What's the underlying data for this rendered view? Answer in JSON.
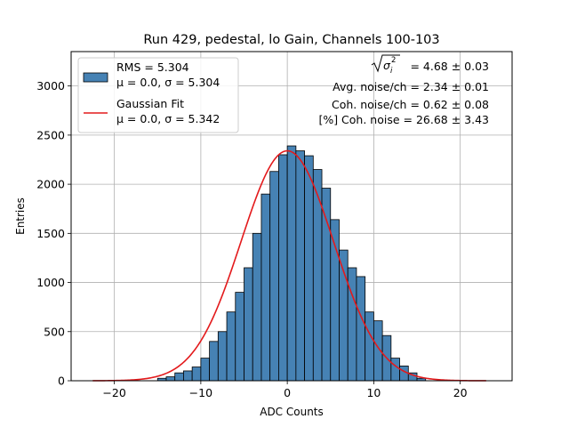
{
  "chart_data": {
    "type": "bar",
    "title": "Run 429, pedestal, lo Gain, Channels 100-103",
    "xlabel": "ADC Counts",
    "ylabel": "Entries",
    "xlim": [
      -25,
      26
    ],
    "ylim": [
      0,
      3350
    ],
    "xticks": [
      -20,
      -10,
      0,
      10,
      20
    ],
    "yticks": [
      0,
      500,
      1000,
      1500,
      2000,
      2500,
      3000
    ],
    "grid": true,
    "bar_color": "#4682b4",
    "fit_color": "#e31a1c",
    "bin_width": 1,
    "bins": {
      "lefts": [
        -15,
        -14,
        -13,
        -12,
        -11,
        -10,
        -9,
        -8,
        -7,
        -6,
        -5,
        -4,
        -3,
        -2,
        -1,
        0,
        1,
        2,
        3,
        4,
        5,
        6,
        7,
        8,
        9,
        10,
        11,
        12,
        13,
        14,
        15
      ],
      "counts": [
        25,
        40,
        80,
        100,
        140,
        230,
        400,
        500,
        700,
        900,
        1150,
        1500,
        1900,
        2130,
        2300,
        2390,
        2340,
        2290,
        2150,
        1960,
        1640,
        1330,
        1150,
        1060,
        700,
        610,
        460,
        230,
        150,
        80,
        25
      ]
    },
    "fit": {
      "mu": 0.0,
      "sigma": 5.342,
      "amplitude": 2340,
      "x_range": [
        -22.5,
        23
      ]
    },
    "legend": {
      "position": "upper-left",
      "entries": [
        {
          "kind": "patch",
          "line1": "RMS = 5.304",
          "line2": "μ = 0.0, σ = 5.304"
        },
        {
          "kind": "line",
          "line1": "Gaussian Fit",
          "line2": "μ = 0.0, σ = 5.342"
        }
      ]
    },
    "annotations": {
      "sqrt_value": " = 4.68 ± 0.03",
      "lines": [
        "Avg. noise/ch = 2.34 ± 0.01",
        "Coh. noise/ch = 0.62 ± 0.08",
        "[%] Coh. noise = 26.68 ± 3.43"
      ]
    }
  }
}
